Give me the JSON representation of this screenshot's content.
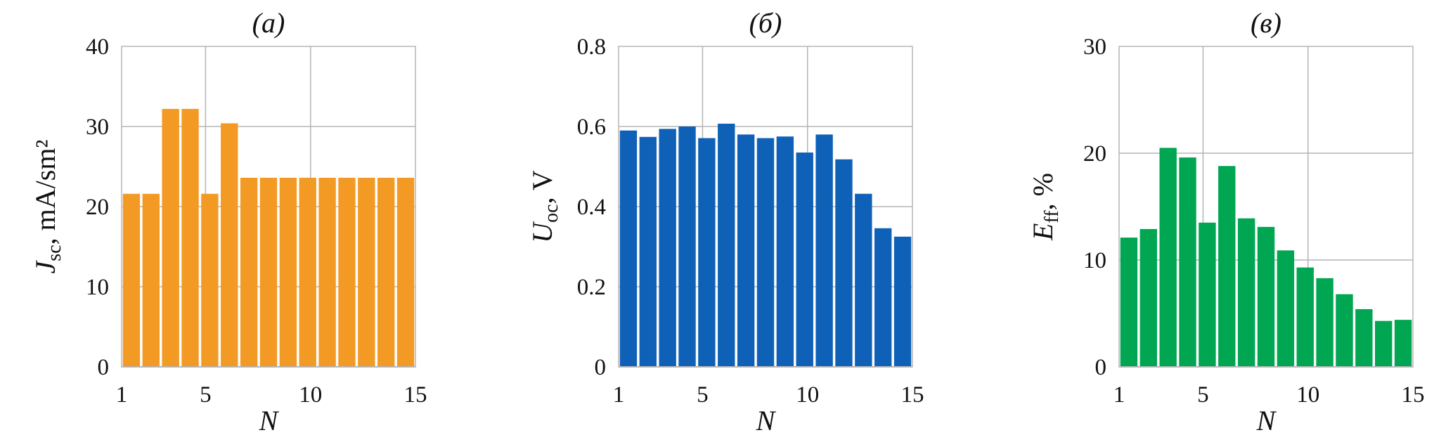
{
  "chart_data": [
    {
      "type": "bar",
      "title": "(a)",
      "xlabel": "N",
      "ylabel": {
        "symbol": "J",
        "subscript": "sc",
        "rest": ", mA/sm²"
      },
      "x": [
        1,
        2,
        3,
        4,
        5,
        6,
        7,
        8,
        9,
        10,
        11,
        12,
        13,
        14,
        15
      ],
      "values": [
        21.6,
        21.6,
        32.2,
        32.2,
        21.6,
        30.4,
        23.6,
        23.6,
        23.6,
        23.6,
        23.6,
        23.6,
        23.6,
        23.6,
        23.6
      ],
      "ylim": [
        0,
        40
      ],
      "yticks": [
        "0",
        "10",
        "20",
        "30",
        "40"
      ],
      "xlim": [
        1,
        15
      ],
      "xticks": [
        "1",
        "5",
        "10",
        "15"
      ],
      "color": "#F39A24",
      "grid": true
    },
    {
      "type": "bar",
      "title": "(б)",
      "xlabel": "N",
      "ylabel": {
        "symbol": "U",
        "subscript": "oc",
        "rest": ", V"
      },
      "x": [
        1,
        2,
        3,
        4,
        5,
        6,
        7,
        8,
        9,
        10,
        11,
        12,
        13,
        14,
        15
      ],
      "values": [
        0.59,
        0.574,
        0.594,
        0.6,
        0.571,
        0.607,
        0.58,
        0.571,
        0.575,
        0.535,
        0.58,
        0.518,
        0.432,
        0.346,
        0.325
      ],
      "ylim": [
        0,
        0.8
      ],
      "yticks": [
        "0",
        "0.2",
        "0.4",
        "0.6",
        "0.8"
      ],
      "xlim": [
        1,
        15
      ],
      "xticks": [
        "1",
        "5",
        "10",
        "15"
      ],
      "color": "#0F61B7",
      "grid": true
    },
    {
      "type": "bar",
      "title": "(в)",
      "xlabel": "N",
      "ylabel": {
        "symbol": "E",
        "subscript": "ff",
        "rest": ", %"
      },
      "x": [
        1,
        2,
        3,
        4,
        5,
        6,
        7,
        8,
        9,
        10,
        11,
        12,
        13,
        14,
        15
      ],
      "values": [
        12.1,
        12.9,
        20.5,
        19.6,
        13.5,
        18.8,
        13.9,
        13.1,
        10.9,
        9.3,
        8.3,
        6.8,
        5.4,
        4.3,
        4.4
      ],
      "ylim": [
        0,
        30
      ],
      "yticks": [
        "0",
        "10",
        "20",
        "30"
      ],
      "xlim": [
        1,
        15
      ],
      "xticks": [
        "1",
        "5",
        "10",
        "15"
      ],
      "color": "#00A651",
      "grid": true
    }
  ]
}
